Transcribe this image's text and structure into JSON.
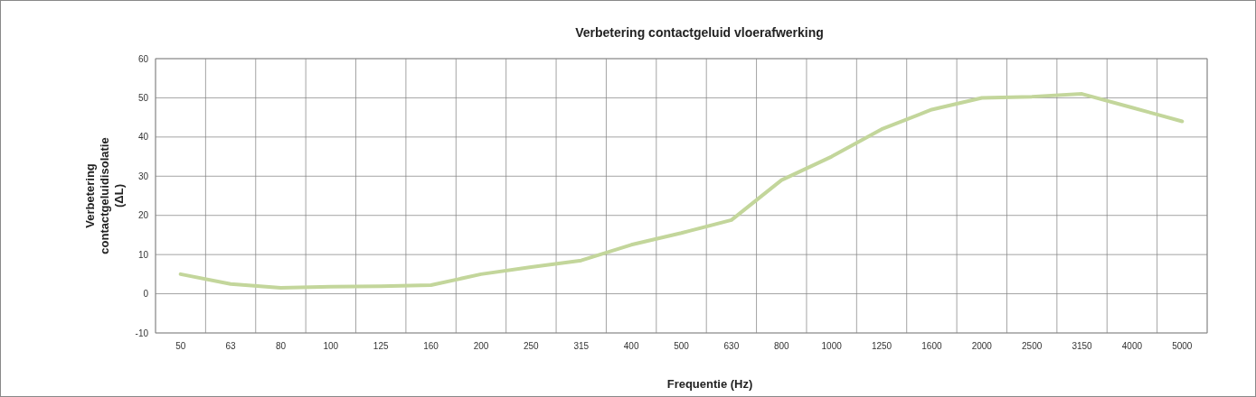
{
  "chart_data": {
    "type": "line",
    "title": "Verbetering contactgeluid vloerafwerking",
    "xlabel": "Frequentie (Hz)",
    "ylabel": "Verbetering contactgeluidisolatie (ΔL)",
    "categories": [
      "50",
      "63",
      "80",
      "100",
      "125",
      "160",
      "200",
      "250",
      "315",
      "400",
      "500",
      "630",
      "800",
      "1000",
      "1250",
      "1600",
      "2000",
      "2500",
      "3150",
      "4000",
      "5000"
    ],
    "series": [
      {
        "color": "#c3d69b",
        "values": [
          5,
          2.5,
          1.5,
          1.8,
          1.9,
          2.2,
          5,
          6.8,
          8.5,
          12.5,
          15.5,
          18.8,
          29,
          35,
          42,
          47,
          50,
          50.3,
          51,
          47.5,
          44
        ]
      }
    ],
    "ylim": [
      -10,
      60
    ],
    "yticks": [
      -10,
      0,
      10,
      20,
      30,
      40,
      50,
      60
    ],
    "grid": true,
    "marker": "none",
    "line_style": "solid"
  }
}
